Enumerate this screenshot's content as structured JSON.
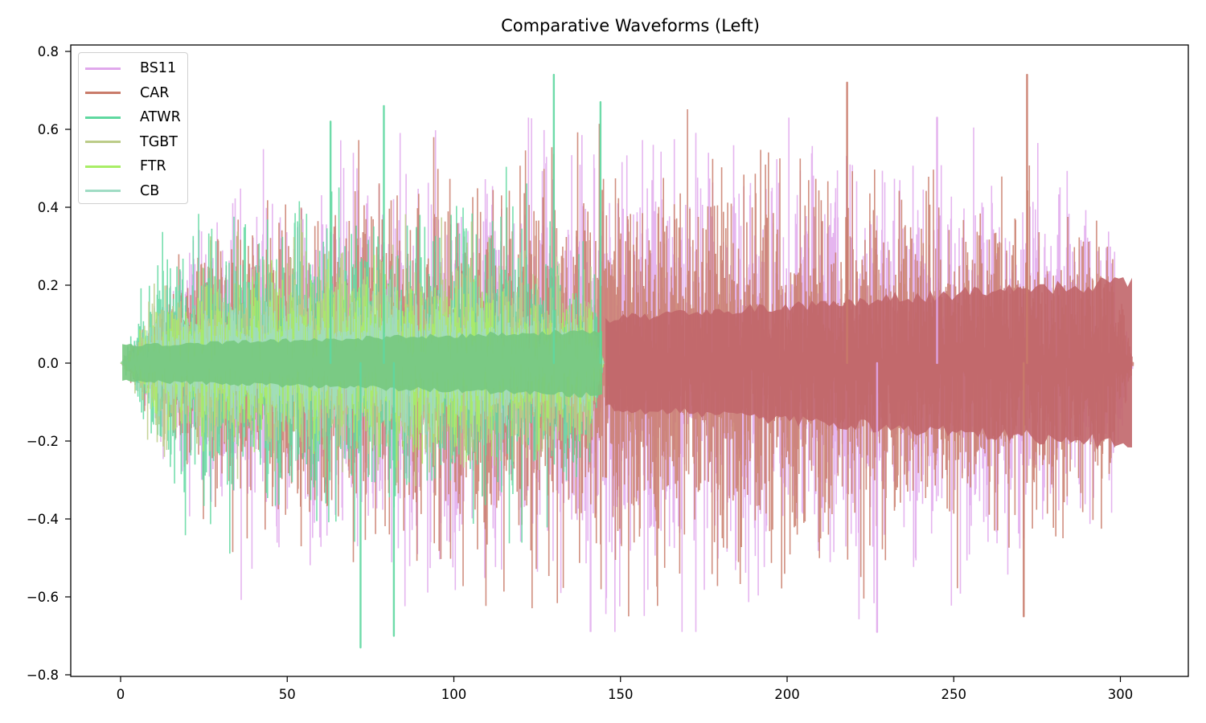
{
  "chart_data": {
    "type": "line",
    "title": "Comparative Waveforms (Left)",
    "xlabel": "",
    "ylabel": "",
    "xlim": [
      -14,
      320
    ],
    "ylim": [
      -0.81,
      0.81
    ],
    "x_ticks": [
      0,
      50,
      100,
      150,
      200,
      250,
      300
    ],
    "x_tick_labels": [
      "0",
      "50",
      "100",
      "150",
      "200",
      "250",
      "300"
    ],
    "y_ticks": [
      0.8,
      0.6,
      0.4,
      0.2,
      0.0,
      -0.2,
      -0.4,
      -0.6,
      -0.8
    ],
    "y_tick_labels": [
      "0.8",
      "0.6",
      "0.4",
      "0.2",
      "0.0",
      "−0.2",
      "−0.4",
      "−0.6",
      "−0.8"
    ],
    "grid": false,
    "legend_position": "upper left",
    "series": [
      {
        "name": "BS11",
        "color": "#e0a8ec",
        "x_start": 0,
        "x_end": 304,
        "typical_amplitude": 0.3,
        "max_peak": 0.63,
        "min_trough": -0.69
      },
      {
        "name": "CAR",
        "color": "#c97b6a",
        "x_start": 0,
        "x_end": 304,
        "typical_amplitude": 0.28,
        "max_peak": 0.74,
        "min_trough": -0.65
      },
      {
        "name": "ATWR",
        "color": "#5fd8a0",
        "x_start": 0,
        "x_end": 145,
        "typical_amplitude": 0.22,
        "max_peak": 0.74,
        "min_trough": -0.73
      },
      {
        "name": "TGBT",
        "color": "#bccc88",
        "x_start": 0,
        "x_end": 145,
        "typical_amplitude": 0.16,
        "max_peak": 0.47,
        "min_trough": -0.5
      },
      {
        "name": "FTR",
        "color": "#a8ee66",
        "x_start": 0,
        "x_end": 145,
        "typical_amplitude": 0.12,
        "max_peak": 0.36,
        "min_trough": -0.36
      },
      {
        "name": "CB",
        "color": "#a0dcc4",
        "x_start": 0,
        "x_end": 145,
        "typical_amplitude": 0.1,
        "max_peak": 0.29,
        "min_trough": -0.34
      }
    ],
    "notable_peaks": [
      {
        "series": "ATWR",
        "x": 130,
        "y": 0.74
      },
      {
        "series": "ATWR",
        "x": 72,
        "y": -0.73
      },
      {
        "series": "ATWR",
        "x": 82,
        "y": -0.7
      },
      {
        "series": "ATWR",
        "x": 79,
        "y": 0.66
      },
      {
        "series": "ATWR",
        "x": 144,
        "y": 0.67
      },
      {
        "series": "ATWR",
        "x": 63,
        "y": 0.62
      },
      {
        "series": "CAR",
        "x": 272,
        "y": 0.74
      },
      {
        "series": "CAR",
        "x": 218,
        "y": 0.72
      },
      {
        "series": "CAR",
        "x": 271,
        "y": -0.65
      },
      {
        "series": "BS11",
        "x": 227,
        "y": -0.69
      },
      {
        "series": "BS11",
        "x": 245,
        "y": 0.63
      }
    ]
  }
}
